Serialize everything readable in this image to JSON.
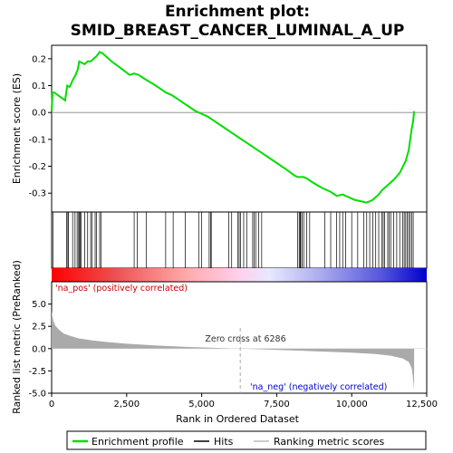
{
  "chart_data": {
    "type": "line",
    "title_line1": "Enrichment plot:",
    "title_line2": "SMID_BREAST_CANCER_LUMINAL_A_UP",
    "xlabel": "Rank in Ordered Dataset",
    "ylabel_top": "Enrichment score (ES)",
    "ylabel_bottom": "Ranked list metric (PreRanked)",
    "xlim": [
      0,
      12500
    ],
    "x_ticks": [
      0,
      2500,
      5000,
      7500,
      10000,
      12500
    ],
    "x_tick_labels": [
      "0",
      "2,500",
      "5,000",
      "7,500",
      "10,000",
      "12,500"
    ],
    "es_ylim": [
      -0.37,
      0.25
    ],
    "es_ticks": [
      0.2,
      0.1,
      0.0,
      -0.1,
      -0.2,
      -0.3
    ],
    "es_tick_labels": [
      "0.2",
      "0.1",
      "0.0",
      "-0.1",
      "-0.2",
      "-0.3"
    ],
    "metric_ylim": [
      -5,
      7.5
    ],
    "metric_ticks": [
      5.0,
      2.5,
      0.0,
      -2.5,
      -5.0
    ],
    "metric_tick_labels": [
      "5.0",
      "2.5",
      "0.0",
      "-2.5",
      "-5.0"
    ],
    "es_profile": {
      "x": [
        0,
        30,
        80,
        450,
        480,
        520,
        600,
        700,
        800,
        870,
        920,
        1000,
        1100,
        1200,
        1300,
        1400,
        1500,
        1600,
        1700,
        1800,
        2000,
        2300,
        2600,
        2750,
        2900,
        3100,
        3400,
        3600,
        3800,
        4000,
        4200,
        4400,
        4600,
        4800,
        5000,
        5200,
        5400,
        5800,
        6200,
        6600,
        7000,
        7400,
        7800,
        8100,
        8200,
        8300,
        8400,
        8500,
        8700,
        9000,
        9300,
        9500,
        9700,
        9900,
        10100,
        10300,
        10500,
        10700,
        10800,
        10900,
        11000,
        11200,
        11400,
        11600,
        11800,
        11900,
        11950,
        12000,
        12050,
        12080
      ],
      "y": [
        0.005,
        0.075,
        0.075,
        0.045,
        0.07,
        0.1,
        0.095,
        0.12,
        0.14,
        0.16,
        0.19,
        0.185,
        0.18,
        0.19,
        0.19,
        0.2,
        0.21,
        0.225,
        0.22,
        0.21,
        0.19,
        0.165,
        0.14,
        0.145,
        0.14,
        0.125,
        0.105,
        0.09,
        0.075,
        0.065,
        0.05,
        0.035,
        0.02,
        0.005,
        -0.005,
        -0.015,
        -0.03,
        -0.06,
        -0.09,
        -0.12,
        -0.15,
        -0.18,
        -0.21,
        -0.235,
        -0.24,
        -0.24,
        -0.24,
        -0.245,
        -0.26,
        -0.28,
        -0.295,
        -0.31,
        -0.305,
        -0.315,
        -0.325,
        -0.33,
        -0.335,
        -0.325,
        -0.315,
        -0.305,
        -0.29,
        -0.27,
        -0.25,
        -0.225,
        -0.18,
        -0.14,
        -0.1,
        -0.06,
        -0.03,
        0.005
      ]
    },
    "hits_x": [
      50,
      500,
      540,
      560,
      700,
      780,
      850,
      900,
      920,
      950,
      980,
      1100,
      1200,
      1300,
      1350,
      1450,
      1500,
      1600,
      1650,
      2750,
      2850,
      3150,
      3800,
      4050,
      4450,
      4900,
      5000,
      5250,
      5300,
      5320,
      5900,
      6000,
      6200,
      6250,
      6300,
      6400,
      6500,
      6700,
      6750,
      6800,
      6900,
      7000,
      8200,
      8250,
      8280,
      8300,
      8350,
      8400,
      8500,
      8600,
      9100,
      9300,
      9500,
      9600,
      9700,
      9800,
      10000,
      10200,
      10400,
      10500,
      10600,
      10700,
      10800,
      10900,
      11000,
      11050,
      11100,
      11200,
      11250,
      11300,
      11400,
      11500,
      11600,
      11700,
      11750,
      11800,
      11850,
      11900,
      11950,
      12000,
      12050
    ],
    "metric_profile": {
      "x": [
        0,
        20,
        60,
        120,
        250,
        400,
        600,
        900,
        1300,
        1800,
        2500,
        3500,
        4500,
        5500,
        6286,
        7000,
        8000,
        9000,
        10000,
        10800,
        11300,
        11700,
        11900,
        12000,
        12040,
        12070,
        12080
      ],
      "y": [
        4.3,
        3.7,
        3.1,
        2.6,
        2.1,
        1.7,
        1.45,
        1.15,
        0.95,
        0.75,
        0.55,
        0.35,
        0.2,
        0.08,
        0.0,
        -0.08,
        -0.2,
        -0.33,
        -0.45,
        -0.6,
        -0.8,
        -1.1,
        -1.5,
        -2.2,
        -3.2,
        -4.3,
        -4.6
      ]
    },
    "zero_cross_label": "Zero cross at 6286",
    "zero_cross_x": 6286,
    "pos_label": "'na_pos' (positively correlated)",
    "neg_label": "'na_neg' (negatively correlated)",
    "legend": [
      "Enrichment profile",
      "Hits",
      "Ranking metric scores"
    ],
    "colors": {
      "es_line": "#00dd00",
      "hits": "#000000",
      "metric_fill": "#aaaaaa",
      "pos_text": "#cc0000",
      "neg_text": "#0000cc",
      "zero_line": "#aaaaaa",
      "grid_zero": "#888888"
    }
  }
}
